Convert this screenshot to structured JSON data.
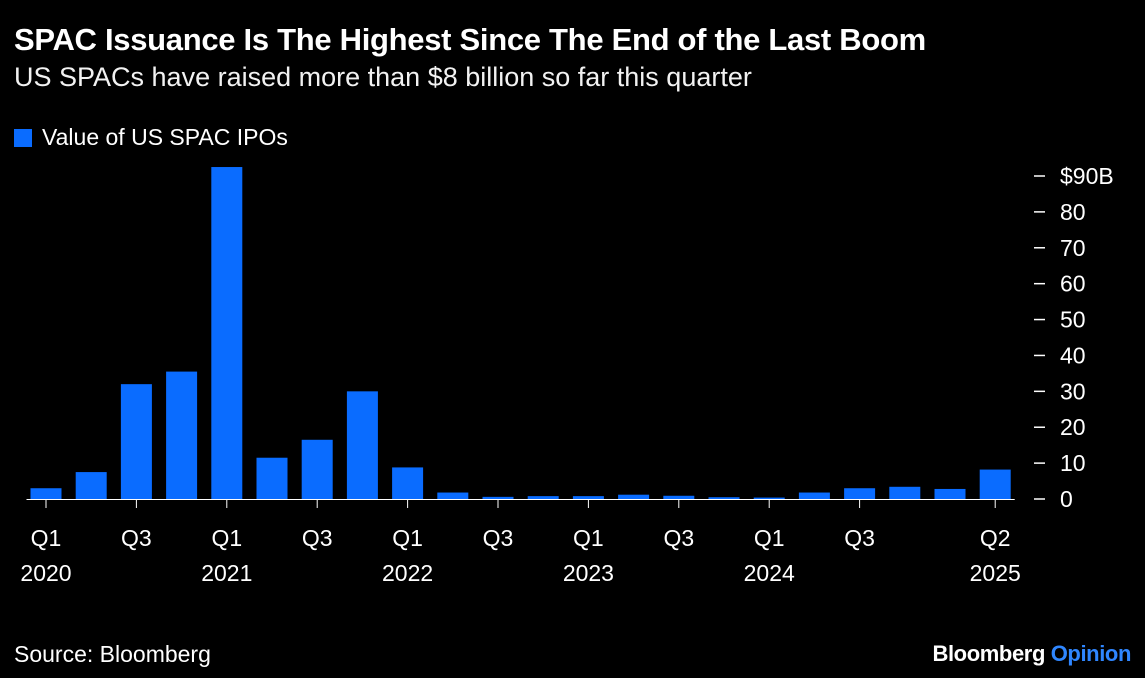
{
  "title": "SPAC Issuance Is The Highest Since The End of the Last Boom",
  "subtitle": "US SPACs have raised more than $8 billion so far this quarter",
  "legend": {
    "label": "Value of US SPAC IPOs",
    "color": "#0a6cff"
  },
  "source": "Source: Bloomberg",
  "brand": {
    "name": "Bloomberg",
    "suffix": "Opinion"
  },
  "colors": {
    "bar": "#0a6cff",
    "background": "#000000",
    "text": "#ffffff",
    "accent": "#2f86ff"
  },
  "chart_data": {
    "type": "bar",
    "title": "SPAC Issuance Is The Highest Since The End of the Last Boom",
    "xlabel": "",
    "ylabel": "",
    "ylim": [
      0,
      90
    ],
    "yticks": [
      0,
      10,
      20,
      30,
      40,
      50,
      60,
      70,
      80,
      90
    ],
    "ytick_labels": [
      "0",
      "10",
      "20",
      "30",
      "40",
      "50",
      "60",
      "70",
      "80",
      "$90B"
    ],
    "categories": [
      "Q1 2020",
      "Q2 2020",
      "Q3 2020",
      "Q4 2020",
      "Q1 2021",
      "Q2 2021",
      "Q3 2021",
      "Q4 2021",
      "Q1 2022",
      "Q2 2022",
      "Q3 2022",
      "Q4 2022",
      "Q1 2023",
      "Q2 2023",
      "Q3 2023",
      "Q4 2023",
      "Q1 2024",
      "Q2 2024",
      "Q3 2024",
      "Q4 2024",
      "Q1 2025",
      "Q2 2025"
    ],
    "series": [
      {
        "name": "Value of US SPAC IPOs",
        "values": [
          3.0,
          7.5,
          32.0,
          35.5,
          92.5,
          11.5,
          16.5,
          30.0,
          8.8,
          1.8,
          0.6,
          0.8,
          0.8,
          1.2,
          0.9,
          0.5,
          0.4,
          1.8,
          3.0,
          3.4,
          2.8,
          8.2
        ]
      }
    ],
    "x_tick_labels": [
      {
        "index": 0,
        "line1": "Q1",
        "line2": "2020"
      },
      {
        "index": 2,
        "line1": "Q3",
        "line2": ""
      },
      {
        "index": 4,
        "line1": "Q1",
        "line2": "2021"
      },
      {
        "index": 6,
        "line1": "Q3",
        "line2": ""
      },
      {
        "index": 8,
        "line1": "Q1",
        "line2": "2022"
      },
      {
        "index": 10,
        "line1": "Q3",
        "line2": ""
      },
      {
        "index": 12,
        "line1": "Q1",
        "line2": "2023"
      },
      {
        "index": 14,
        "line1": "Q3",
        "line2": ""
      },
      {
        "index": 16,
        "line1": "Q1",
        "line2": "2024"
      },
      {
        "index": 18,
        "line1": "Q3",
        "line2": ""
      },
      {
        "index": 21,
        "line1": "Q2",
        "line2": "2025"
      }
    ],
    "grid": false,
    "legend_position": "top-left",
    "y_axis_position": "right"
  }
}
